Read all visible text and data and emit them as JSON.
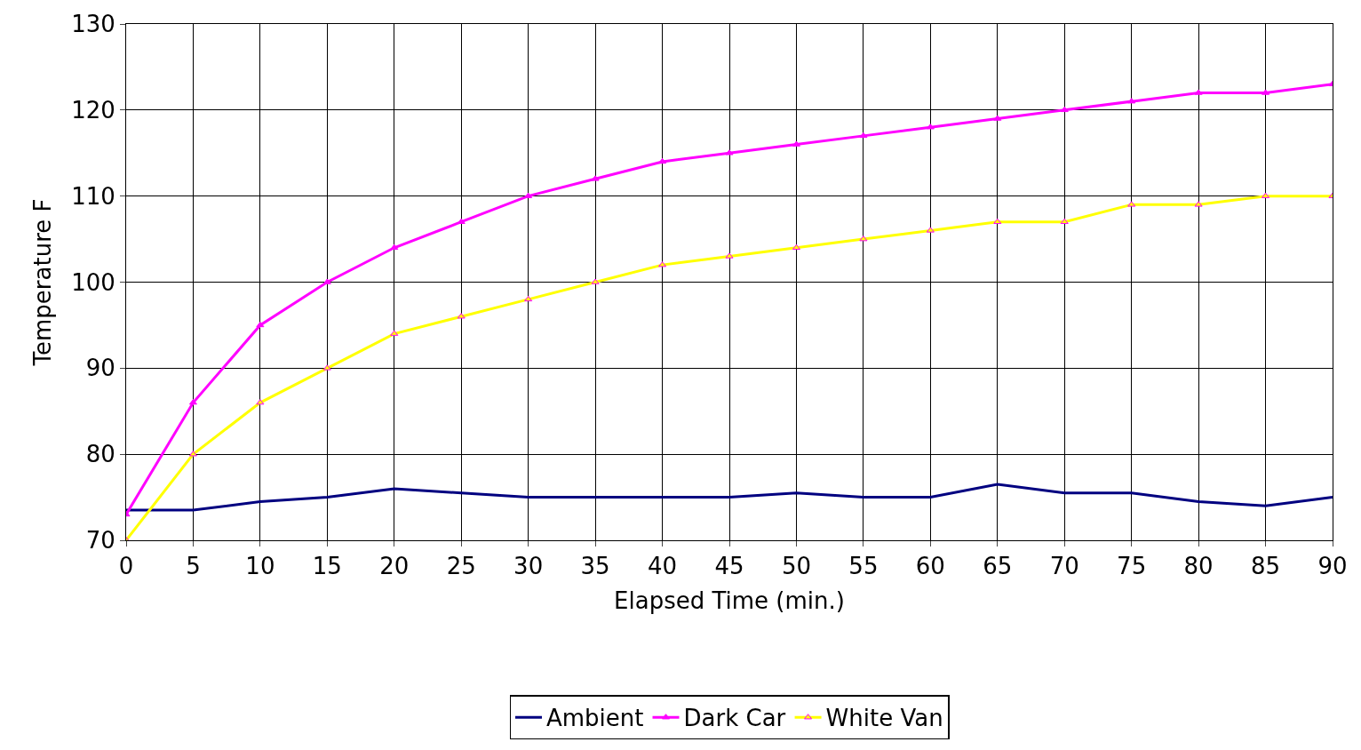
{
  "chart_data": {
    "type": "line",
    "xlabel": "Elapsed Time (min.)",
    "ylabel": "Temperature F",
    "x": [
      0,
      5,
      10,
      15,
      20,
      25,
      30,
      35,
      40,
      45,
      50,
      55,
      60,
      65,
      70,
      75,
      80,
      85,
      90
    ],
    "series": [
      {
        "name": "Ambient",
        "color": "#000080",
        "marker": "none",
        "values": [
          73.5,
          73.5,
          74.5,
          75,
          76,
          75.5,
          75,
          75,
          75,
          75,
          75.5,
          75,
          75,
          76.5,
          75.5,
          75.5,
          74.5,
          74,
          75
        ]
      },
      {
        "name": "Dark Car",
        "color": "#ff00ff",
        "marker": "triangle",
        "values": [
          73,
          86,
          95,
          100,
          104,
          107,
          110,
          112,
          114,
          115,
          116,
          117,
          118,
          119,
          120,
          121,
          122,
          122,
          123
        ]
      },
      {
        "name": "White Van",
        "color": "#ffff00",
        "marker": "triangle",
        "values": [
          70,
          80,
          86,
          90,
          94,
          96,
          98,
          100,
          102,
          103,
          104,
          105,
          106,
          107,
          107,
          109,
          109,
          110,
          110
        ]
      }
    ],
    "xlim": [
      0,
      90
    ],
    "xticks": [
      0,
      5,
      10,
      15,
      20,
      25,
      30,
      35,
      40,
      45,
      50,
      55,
      60,
      65,
      70,
      75,
      80,
      85,
      90
    ],
    "ylim": [
      70,
      130
    ],
    "yticks": [
      70,
      80,
      90,
      100,
      110,
      120,
      130
    ],
    "grid": true,
    "legend": "bottom",
    "line_style": "solid"
  }
}
